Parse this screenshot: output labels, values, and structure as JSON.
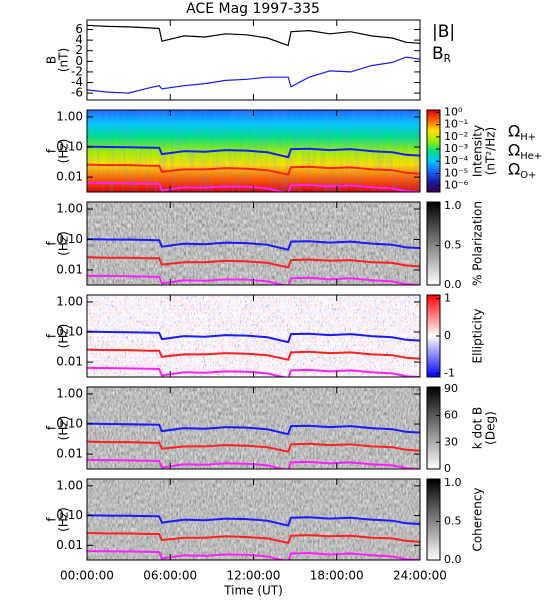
{
  "chart_data": [
    {
      "type": "line",
      "title": "ACE Mag 1997-335",
      "ylabel": [
        "B",
        "(nT)"
      ],
      "xlim": [
        0,
        24
      ],
      "ylim": [
        -7.3,
        7.8
      ],
      "yticks": [
        6,
        4,
        2,
        0,
        -2,
        -4,
        -6
      ],
      "x": [
        0,
        1.5,
        3,
        4.5,
        5.2,
        5.4,
        7,
        8.5,
        10,
        11.5,
        13,
        14.5,
        14.7,
        16,
        17.5,
        19,
        20.5,
        22,
        23,
        24
      ],
      "series": [
        {
          "name": "|B|",
          "color": "#000000",
          "values": [
            6.8,
            6.6,
            6.5,
            6.3,
            6.2,
            3.8,
            4.8,
            4.6,
            5.2,
            5.0,
            4.4,
            3.0,
            5.6,
            5.8,
            5.2,
            5.6,
            4.8,
            4.4,
            3.6,
            3.4
          ]
        },
        {
          "name": "B_R",
          "color": "#1a1aff",
          "values": [
            -5.4,
            -5.8,
            -6.0,
            -5.0,
            -4.6,
            -5.2,
            -4.6,
            -4.2,
            -3.6,
            -3.4,
            -3.0,
            -3.0,
            -4.8,
            -3.0,
            -1.8,
            -2.0,
            -0.8,
            -0.2,
            0.8,
            0.4
          ]
        }
      ]
    },
    {
      "type": "heatmap",
      "ylabel": [
        "f",
        "(Hz)"
      ],
      "yscale": "log",
      "xlim": [
        0,
        24
      ],
      "ylim": [
        0.0032,
        1.7
      ],
      "yticks": [
        {
          "value": 1,
          "label": "1.00"
        },
        {
          "value": 0.1,
          "label": "0.10"
        },
        {
          "value": 0.01,
          "label": "0.01"
        }
      ],
      "zlabel": [
        "Intensity",
        "(nT²/Hz)"
      ],
      "zscale": "log",
      "zlim": [
        3e-07,
        1.6
      ],
      "zticks": [
        {
          "value": 1,
          "label": "10⁰"
        },
        {
          "value": 0.1,
          "label": "10⁻¹"
        },
        {
          "value": 0.01,
          "label": "10⁻²"
        },
        {
          "value": 0.001,
          "label": "10⁻³"
        },
        {
          "value": 0.0001,
          "label": "10⁻⁴"
        },
        {
          "value": 1e-05,
          "label": "10⁻⁵"
        },
        {
          "value": 1e-06,
          "label": "10⁻⁶"
        }
      ],
      "colormap": [
        "#3c0050",
        "#1a1aa0",
        "#1e64ff",
        "#00c8ff",
        "#00e080",
        "#a0f000",
        "#ffe000",
        "#ff6000",
        "#e00000"
      ],
      "x": [
        0,
        1.5,
        3,
        4.5,
        5.2,
        5.4,
        7,
        8.5,
        10,
        11.5,
        13,
        14.5,
        14.7,
        16,
        17.5,
        19,
        20.5,
        22,
        23,
        24
      ],
      "series": [
        {
          "name": "Ω_H+",
          "color": "#1a1aff",
          "values": [
            0.103,
            0.1,
            0.099,
            0.096,
            0.094,
            0.058,
            0.073,
            0.07,
            0.079,
            0.076,
            0.067,
            0.046,
            0.085,
            0.088,
            0.079,
            0.085,
            0.073,
            0.067,
            0.055,
            0.052
          ]
        },
        {
          "name": "Ω_He+",
          "color": "#ff2020",
          "values": [
            0.026,
            0.025,
            0.025,
            0.024,
            0.024,
            0.015,
            0.018,
            0.018,
            0.02,
            0.019,
            0.017,
            0.012,
            0.021,
            0.022,
            0.02,
            0.021,
            0.018,
            0.017,
            0.014,
            0.013
          ]
        },
        {
          "name": "Ω_O+",
          "color": "#ff20ff",
          "values": [
            0.0064,
            0.0063,
            0.0062,
            0.006,
            0.0059,
            0.0036,
            0.0046,
            0.0044,
            0.0049,
            0.0048,
            0.0042,
            0.0029,
            0.0053,
            0.0055,
            0.0049,
            0.0053,
            0.0046,
            0.0042,
            0.0034,
            0.0032
          ]
        }
      ]
    },
    {
      "type": "heatmap",
      "ylabel": [
        "f",
        "(Hz)"
      ],
      "yscale": "log",
      "xlim": [
        0,
        24
      ],
      "ylim": [
        0.0032,
        1.7
      ],
      "yticks": [
        {
          "value": 1,
          "label": "1.00"
        },
        {
          "value": 0.1,
          "label": "0.10"
        },
        {
          "value": 0.01,
          "label": "0.01"
        }
      ],
      "zlabel": [
        "% Polarization"
      ],
      "zlim": [
        0,
        1.05
      ],
      "zticks": [
        {
          "value": 0,
          "label": "0.0"
        },
        {
          "value": 0.5,
          "label": "0.5"
        },
        {
          "value": 1,
          "label": "1.0"
        }
      ],
      "colormap": [
        "#ffffff",
        "#000000"
      ],
      "x": [
        0,
        1.5,
        3,
        4.5,
        5.2,
        5.4,
        7,
        8.5,
        10,
        11.5,
        13,
        14.5,
        14.7,
        16,
        17.5,
        19,
        20.5,
        22,
        23,
        24
      ],
      "series": [
        {
          "color": "#1a1aff",
          "values": [
            0.103,
            0.1,
            0.099,
            0.096,
            0.094,
            0.058,
            0.073,
            0.07,
            0.079,
            0.076,
            0.067,
            0.046,
            0.085,
            0.088,
            0.079,
            0.085,
            0.073,
            0.067,
            0.055,
            0.052
          ]
        },
        {
          "color": "#ff2020",
          "values": [
            0.026,
            0.025,
            0.025,
            0.024,
            0.024,
            0.015,
            0.018,
            0.018,
            0.02,
            0.019,
            0.017,
            0.012,
            0.021,
            0.022,
            0.02,
            0.021,
            0.018,
            0.017,
            0.014,
            0.013
          ]
        },
        {
          "color": "#ff20ff",
          "values": [
            0.0064,
            0.0063,
            0.0062,
            0.006,
            0.0059,
            0.0036,
            0.0046,
            0.0044,
            0.0049,
            0.0048,
            0.0042,
            0.0029,
            0.0053,
            0.0055,
            0.0049,
            0.0053,
            0.0046,
            0.0042,
            0.0034,
            0.0032
          ]
        }
      ]
    },
    {
      "type": "heatmap",
      "ylabel": [
        "f",
        "(Hz)"
      ],
      "yscale": "log",
      "xlim": [
        0,
        24
      ],
      "ylim": [
        0.0032,
        1.7
      ],
      "yticks": [
        {
          "value": 1,
          "label": "1.00"
        },
        {
          "value": 0.1,
          "label": "0.10"
        },
        {
          "value": 0.01,
          "label": "0.01"
        }
      ],
      "zlabel": [
        "Ellipticity"
      ],
      "zlim": [
        -1.1,
        1.1
      ],
      "zticks": [
        1,
        0,
        -1
      ],
      "colormap": [
        "#0000ff",
        "#ffffff",
        "#ff0000"
      ],
      "x": [
        0,
        1.5,
        3,
        4.5,
        5.2,
        5.4,
        7,
        8.5,
        10,
        11.5,
        13,
        14.5,
        14.7,
        16,
        17.5,
        19,
        20.5,
        22,
        23,
        24
      ],
      "series": [
        {
          "color": "#1a1aff",
          "values": [
            0.103,
            0.1,
            0.099,
            0.096,
            0.094,
            0.058,
            0.073,
            0.07,
            0.079,
            0.076,
            0.067,
            0.046,
            0.085,
            0.088,
            0.079,
            0.085,
            0.073,
            0.067,
            0.055,
            0.052
          ]
        },
        {
          "color": "#ff2020",
          "values": [
            0.026,
            0.025,
            0.025,
            0.024,
            0.024,
            0.015,
            0.018,
            0.018,
            0.02,
            0.019,
            0.017,
            0.012,
            0.021,
            0.022,
            0.02,
            0.021,
            0.018,
            0.017,
            0.014,
            0.013
          ]
        },
        {
          "color": "#ff20ff",
          "values": [
            0.0064,
            0.0063,
            0.0062,
            0.006,
            0.0059,
            0.0036,
            0.0046,
            0.0044,
            0.0049,
            0.0048,
            0.0042,
            0.0029,
            0.0053,
            0.0055,
            0.0049,
            0.0053,
            0.0046,
            0.0042,
            0.0034,
            0.0032
          ]
        }
      ]
    },
    {
      "type": "heatmap",
      "ylabel": [
        "f",
        "(Hz)"
      ],
      "yscale": "log",
      "xlim": [
        0,
        24
      ],
      "ylim": [
        0.0032,
        1.7
      ],
      "yticks": [
        {
          "value": 1,
          "label": "1.00"
        },
        {
          "value": 0.1,
          "label": "0.10"
        },
        {
          "value": 0.01,
          "label": "0.01"
        }
      ],
      "zlabel": [
        "k dot B",
        "(Deg)"
      ],
      "zlim": [
        0,
        92
      ],
      "zticks": [
        90,
        60,
        30,
        0
      ],
      "colormap": [
        "#ffffff",
        "#000000"
      ],
      "x": [
        0,
        1.5,
        3,
        4.5,
        5.2,
        5.4,
        7,
        8.5,
        10,
        11.5,
        13,
        14.5,
        14.7,
        16,
        17.5,
        19,
        20.5,
        22,
        23,
        24
      ],
      "series": [
        {
          "color": "#1a1aff",
          "values": [
            0.103,
            0.1,
            0.099,
            0.096,
            0.094,
            0.058,
            0.073,
            0.07,
            0.079,
            0.076,
            0.067,
            0.046,
            0.085,
            0.088,
            0.079,
            0.085,
            0.073,
            0.067,
            0.055,
            0.052
          ]
        },
        {
          "color": "#ff2020",
          "values": [
            0.026,
            0.025,
            0.025,
            0.024,
            0.024,
            0.015,
            0.018,
            0.018,
            0.02,
            0.019,
            0.017,
            0.012,
            0.021,
            0.022,
            0.02,
            0.021,
            0.018,
            0.017,
            0.014,
            0.013
          ]
        },
        {
          "color": "#ff20ff",
          "values": [
            0.0064,
            0.0063,
            0.0062,
            0.006,
            0.0059,
            0.0036,
            0.0046,
            0.0044,
            0.0049,
            0.0048,
            0.0042,
            0.0029,
            0.0053,
            0.0055,
            0.0049,
            0.0053,
            0.0046,
            0.0042,
            0.0034,
            0.0032
          ]
        }
      ]
    },
    {
      "type": "heatmap",
      "ylabel": [
        "f",
        "(Hz)"
      ],
      "yscale": "log",
      "xlim": [
        0,
        24
      ],
      "ylim": [
        0.0032,
        1.7
      ],
      "yticks": [
        {
          "value": 1,
          "label": "1.00"
        },
        {
          "value": 0.1,
          "label": "0.10"
        },
        {
          "value": 0.01,
          "label": "0.01"
        }
      ],
      "zlabel": [
        "Coherency"
      ],
      "zlim": [
        0,
        1.05
      ],
      "zticks": [
        {
          "value": 0,
          "label": "0.0"
        },
        {
          "value": 0.5,
          "label": "0.5"
        },
        {
          "value": 1,
          "label": "1.0"
        }
      ],
      "colormap": [
        "#ffffff",
        "#000000"
      ],
      "xlabel": "Time (UT)",
      "xticks": [
        {
          "value": 0,
          "label": "00:00:00"
        },
        {
          "value": 6,
          "label": "06:00:00"
        },
        {
          "value": 12,
          "label": "12:00:00"
        },
        {
          "value": 18,
          "label": "18:00:00"
        },
        {
          "value": 24,
          "label": "24:00:00"
        }
      ],
      "x": [
        0,
        1.5,
        3,
        4.5,
        5.2,
        5.4,
        7,
        8.5,
        10,
        11.5,
        13,
        14.5,
        14.7,
        16,
        17.5,
        19,
        20.5,
        22,
        23,
        24
      ],
      "series": [
        {
          "color": "#1a1aff",
          "values": [
            0.103,
            0.1,
            0.099,
            0.096,
            0.094,
            0.058,
            0.073,
            0.07,
            0.079,
            0.076,
            0.067,
            0.046,
            0.085,
            0.088,
            0.079,
            0.085,
            0.073,
            0.067,
            0.055,
            0.052
          ]
        },
        {
          "color": "#ff2020",
          "values": [
            0.026,
            0.025,
            0.025,
            0.024,
            0.024,
            0.015,
            0.018,
            0.018,
            0.02,
            0.019,
            0.017,
            0.012,
            0.021,
            0.022,
            0.02,
            0.021,
            0.018,
            0.017,
            0.014,
            0.013
          ]
        },
        {
          "color": "#ff20ff",
          "values": [
            0.0064,
            0.0063,
            0.0062,
            0.006,
            0.0059,
            0.0036,
            0.0046,
            0.0044,
            0.0049,
            0.0048,
            0.0042,
            0.0029,
            0.0053,
            0.0055,
            0.0049,
            0.0053,
            0.0046,
            0.0042,
            0.0034,
            0.0032
          ]
        }
      ]
    }
  ]
}
